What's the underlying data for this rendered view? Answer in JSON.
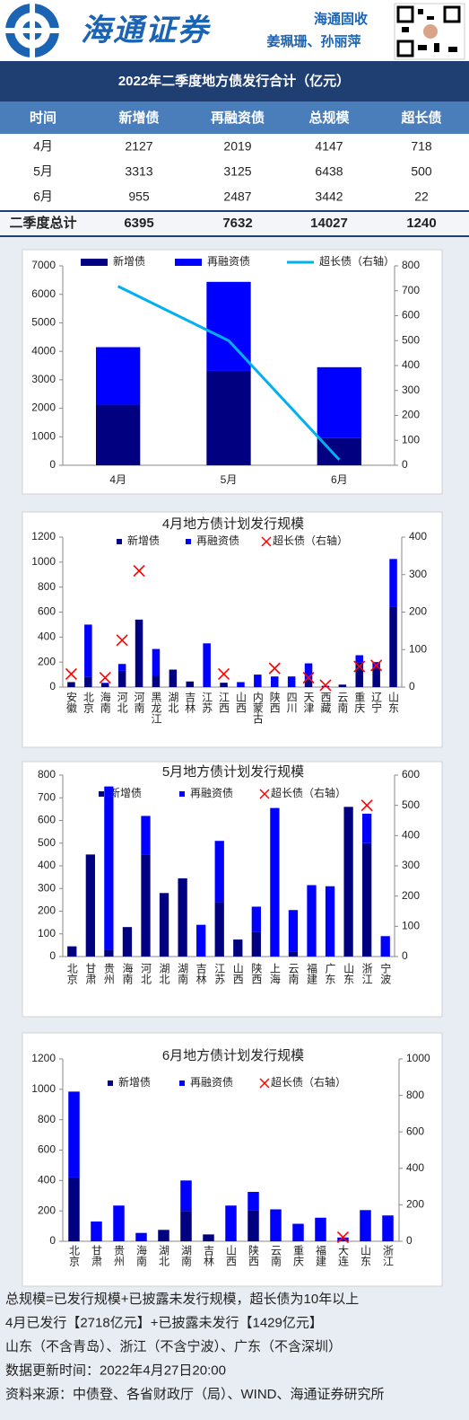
{
  "header": {
    "brand": "海通证券",
    "team": "海通固收",
    "authors": "姜珮珊、孙丽萍"
  },
  "table": {
    "title": "2022年二季度地方债发行合计（亿元）",
    "columns": [
      "时间",
      "新增债",
      "再融资债",
      "总规模",
      "超长债"
    ],
    "rows": [
      [
        "4月",
        2127,
        2019,
        4147,
        718
      ],
      [
        "5月",
        3313,
        3125,
        6438,
        500
      ],
      [
        "6月",
        955,
        2487,
        3442,
        22
      ]
    ],
    "total": [
      "二季度总计",
      6395,
      7632,
      14027,
      1240
    ]
  },
  "chart_data": [
    {
      "type": "bar",
      "stacked": true,
      "categories": [
        "4月",
        "5月",
        "6月"
      ],
      "series": [
        {
          "name": "新增债",
          "color": "#000080",
          "values": [
            2127,
            3313,
            955
          ]
        },
        {
          "name": "再融资债",
          "color": "#0000ff",
          "values": [
            2019,
            3125,
            2487
          ]
        },
        {
          "name": "超长债（右轴）",
          "type": "line",
          "axis": "y2",
          "color": "#00b0f0",
          "values": [
            718,
            500,
            22
          ]
        }
      ],
      "ylim": [
        0,
        7000
      ],
      "yticks": [
        0,
        1000,
        2000,
        3000,
        4000,
        5000,
        6000,
        7000
      ],
      "y2lim": [
        0,
        800
      ],
      "y2ticks": [
        0,
        100,
        200,
        300,
        400,
        500,
        600,
        700,
        800
      ]
    },
    {
      "type": "bar",
      "stacked": true,
      "title": "4月地方债计划发行规模",
      "categories": [
        "安徽",
        "北京",
        "海南",
        "河北",
        "河南",
        "黑龙江",
        "湖北",
        "吉林",
        "江苏",
        "江西",
        "山西",
        "内蒙古",
        "陕西",
        "四川",
        "天津",
        "西藏",
        "云南",
        "重庆",
        "辽宁",
        "山东"
      ],
      "series": [
        {
          "name": "新增债",
          "color": "#000080",
          "values": [
            40,
            80,
            30,
            130,
            540,
            90,
            140,
            45,
            0,
            35,
            0,
            0,
            0,
            0,
            60,
            10,
            20,
            195,
            150,
            640
          ]
        },
        {
          "name": "再融资债",
          "color": "#0000ff",
          "values": [
            0,
            420,
            5,
            55,
            0,
            215,
            0,
            0,
            350,
            0,
            40,
            100,
            85,
            85,
            130,
            0,
            0,
            60,
            50,
            385
          ]
        },
        {
          "name": "超长债（右轴）",
          "type": "scatter",
          "axis": "y2",
          "color": "#ff0000",
          "values": [
            35,
            null,
            25,
            125,
            310,
            null,
            null,
            null,
            null,
            35,
            null,
            null,
            50,
            null,
            25,
            5,
            null,
            55,
            58,
            null
          ]
        }
      ],
      "ylim": [
        0,
        1200
      ],
      "yticks": [
        0,
        200,
        400,
        600,
        800,
        1000,
        1200
      ],
      "y2lim": [
        0,
        400
      ],
      "y2ticks": [
        0,
        100,
        200,
        300,
        400
      ]
    },
    {
      "type": "bar",
      "stacked": true,
      "title": "5月地方债计划发行规模",
      "categories": [
        "北京",
        "甘肃",
        "贵州",
        "海南",
        "河北",
        "湖北",
        "湖南",
        "吉林",
        "江苏",
        "山西",
        "陕西",
        "上海",
        "云南",
        "福建",
        "广东",
        "山东",
        "浙江",
        "宁波"
      ],
      "series": [
        {
          "name": "新增债",
          "color": "#000080",
          "values": [
            45,
            450,
            30,
            130,
            450,
            280,
            345,
            0,
            240,
            75,
            110,
            0,
            20,
            0,
            0,
            660,
            500,
            0
          ]
        },
        {
          "name": "再融资债",
          "color": "#0000ff",
          "values": [
            0,
            0,
            720,
            0,
            170,
            0,
            0,
            140,
            270,
            0,
            110,
            655,
            185,
            315,
            310,
            0,
            130,
            90
          ]
        },
        {
          "name": "超长债（右轴）",
          "type": "scatter",
          "axis": "y2",
          "color": "#ff0000",
          "values": [
            null,
            null,
            null,
            null,
            null,
            null,
            null,
            null,
            null,
            null,
            null,
            null,
            null,
            null,
            null,
            null,
            500,
            null
          ]
        }
      ],
      "ylim": [
        0,
        800
      ],
      "yticks": [
        0,
        100,
        200,
        300,
        400,
        500,
        600,
        700,
        800
      ],
      "y2lim": [
        0,
        600
      ],
      "y2ticks": [
        0,
        100,
        200,
        300,
        400,
        500,
        600
      ]
    },
    {
      "type": "bar",
      "stacked": true,
      "title": "6月地方债计划发行规模",
      "categories": [
        "北京",
        "甘肃",
        "贵州",
        "海南",
        "湖北",
        "湖南",
        "吉林",
        "山西",
        "陕西",
        "云南",
        "重庆",
        "福建",
        "大连",
        "山东",
        "浙江"
      ],
      "series": [
        {
          "name": "新增债",
          "color": "#000080",
          "values": [
            420,
            0,
            0,
            0,
            75,
            200,
            45,
            0,
            205,
            0,
            0,
            0,
            0,
            0,
            0
          ]
        },
        {
          "name": "再融资债",
          "color": "#0000ff",
          "values": [
            565,
            130,
            235,
            55,
            0,
            200,
            0,
            235,
            120,
            210,
            115,
            155,
            25,
            205,
            170
          ]
        },
        {
          "name": "超长债（右轴）",
          "type": "scatter",
          "axis": "y2",
          "color": "#ff0000",
          "values": [
            null,
            null,
            null,
            null,
            null,
            null,
            null,
            null,
            null,
            null,
            null,
            null,
            22,
            null,
            null
          ]
        }
      ],
      "ylim": [
        0,
        1200
      ],
      "yticks": [
        0,
        200,
        400,
        600,
        800,
        1000,
        1200
      ],
      "y2lim": [
        0,
        1000
      ],
      "y2ticks": [
        0,
        200,
        400,
        600,
        800,
        1000
      ]
    }
  ],
  "notes": [
    "总规模=已发行规模+已披露未发行规模，超长债为10年以上",
    "4月已发行【2718亿元】+已披露未发行【1429亿元】",
    "山东（不含青岛）、浙江（不含宁波）、广东（不含深圳）",
    "数据更新时间：2022年4月27日20:00",
    "资料来源：中债登、各省财政厅（局）、WIND、海通证券研究所"
  ]
}
